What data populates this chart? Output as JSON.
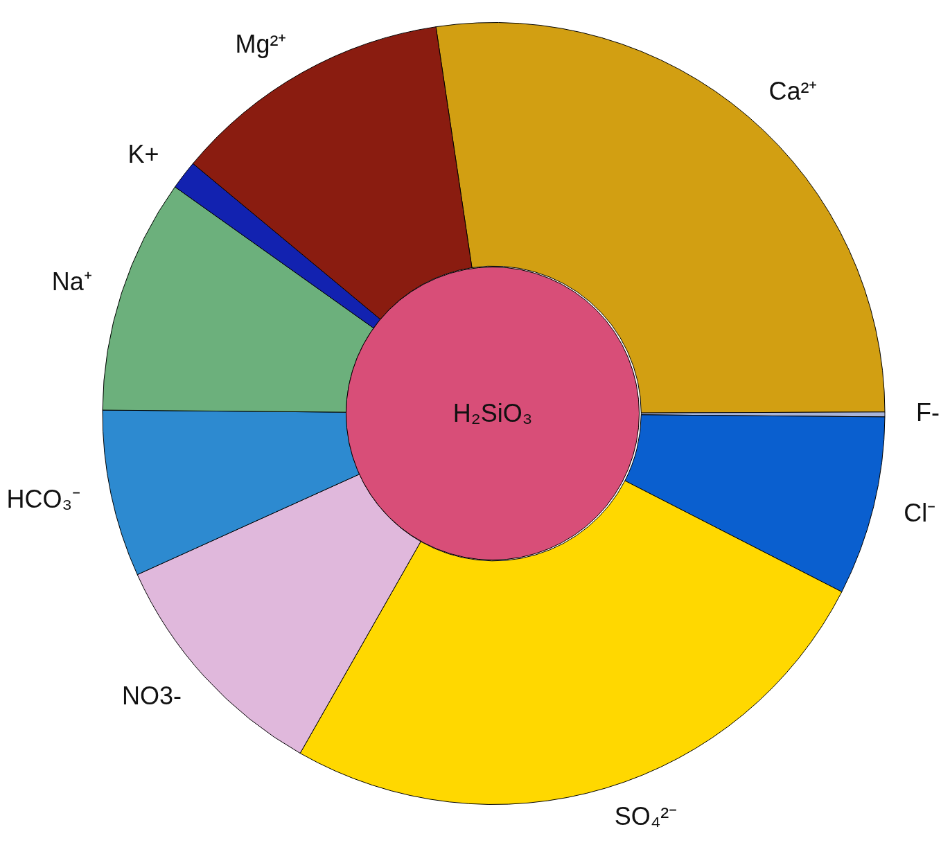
{
  "chart_data": {
    "type": "donut",
    "categories": [
      "Ca²⁺",
      "F-",
      "Cl⁻",
      "SO₄²⁻",
      "NO3-",
      "HCO₃⁻",
      "Na⁺",
      "K+",
      "Mg²⁺"
    ],
    "values": [
      27.3,
      0.2,
      7.4,
      25.7,
      10.0,
      6.9,
      9.7,
      1.2,
      11.6
    ],
    "colors": [
      "#d29f12",
      "#a8b4d8",
      "#0a5fcf",
      "#ffd800",
      "#e0b8dc",
      "#2d8ad0",
      "#6cb07c",
      "#1222b0",
      "#8a1c10"
    ],
    "annotations": [
      "H₂SiO₃"
    ]
  }
}
